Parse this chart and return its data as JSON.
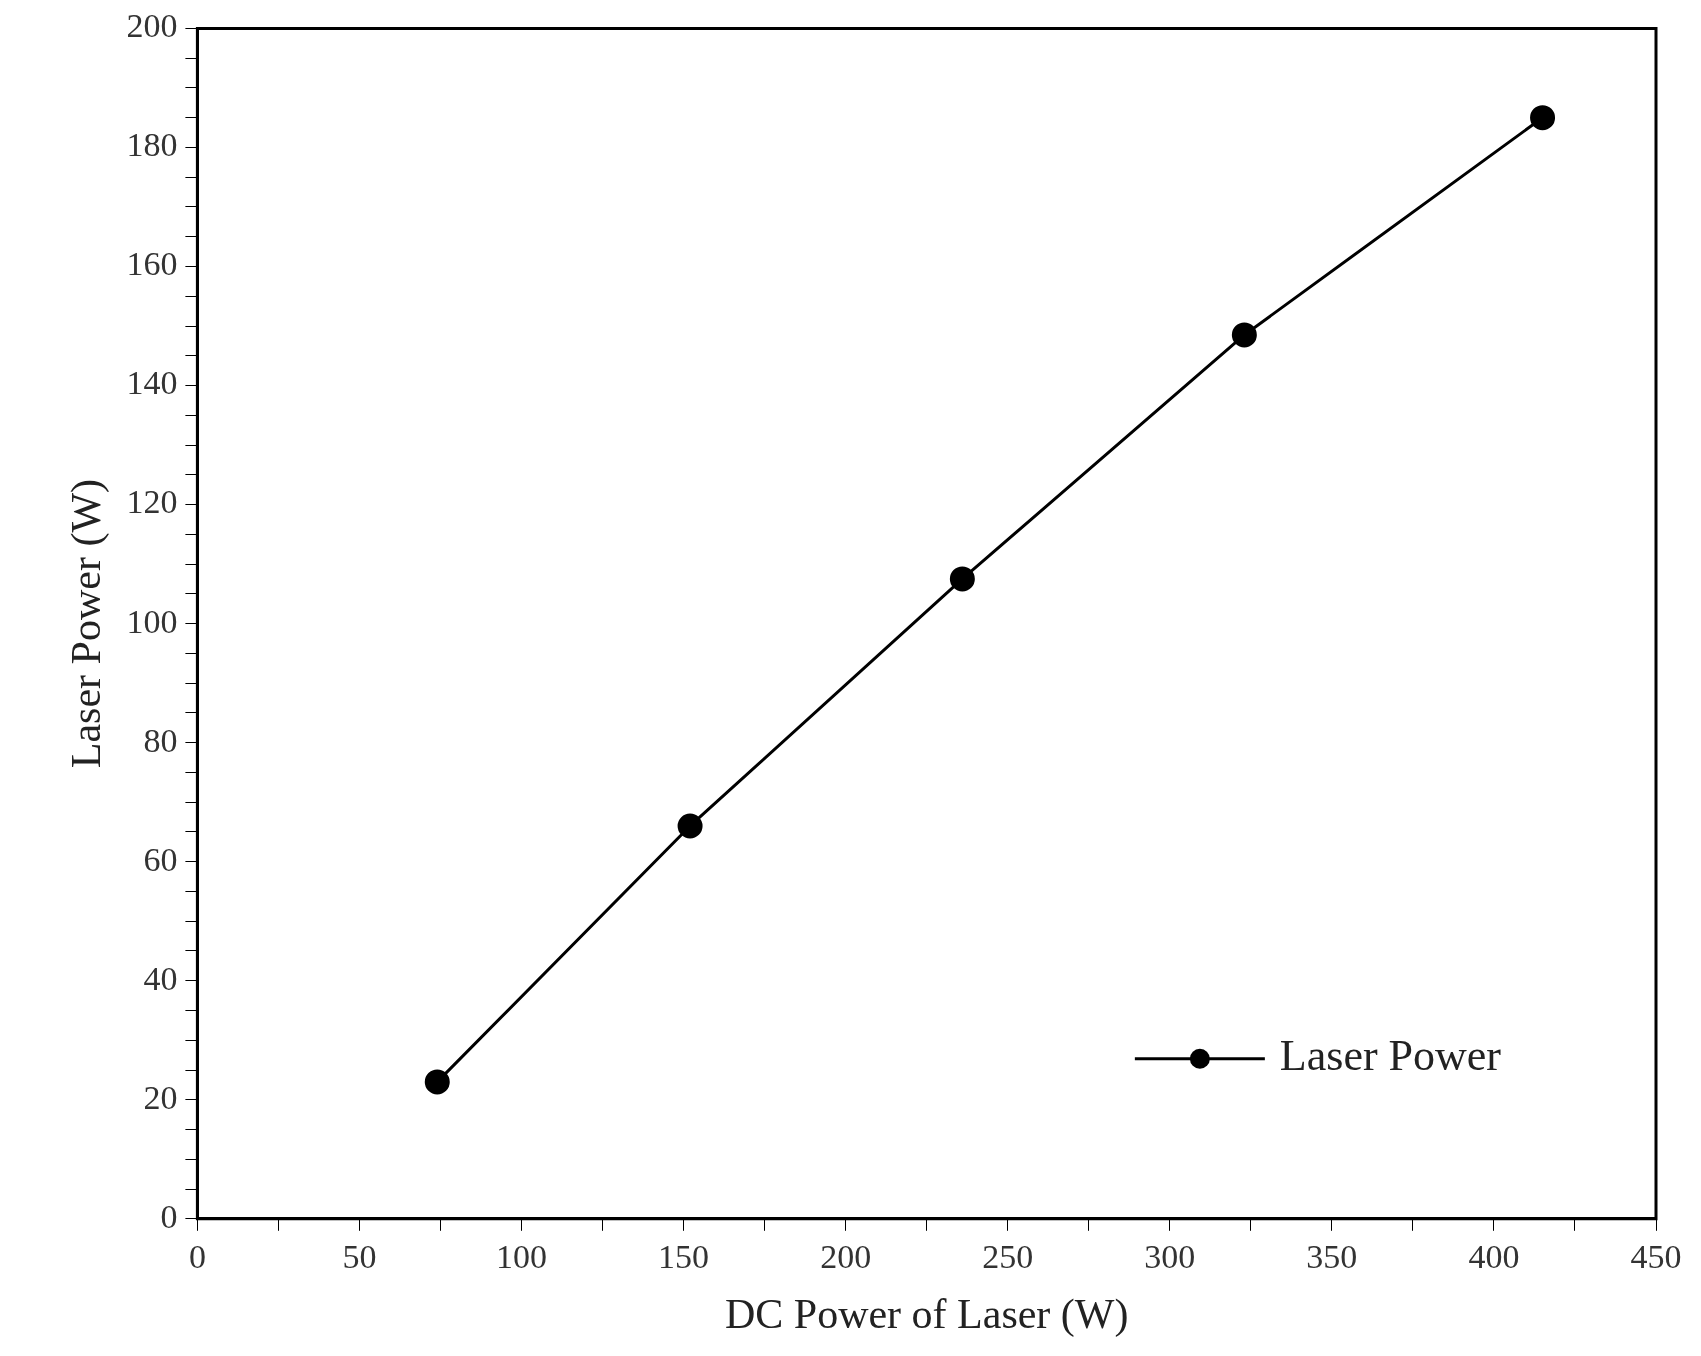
{
  "chart_data": {
    "type": "line",
    "xlabel": "DC Power of Laser (W)",
    "ylabel": "Laser Power (W)",
    "x": [
      74,
      152,
      236,
      323,
      415
    ],
    "series": [
      {
        "name": "Laser Power",
        "color": "#000000",
        "values": [
          23,
          66,
          107.5,
          148.5,
          185
        ]
      }
    ],
    "xlim": [
      0,
      450
    ],
    "ylim": [
      0,
      200
    ],
    "xticks": [
      0,
      {
        "value": 25,
        "label": null
      },
      50,
      {
        "value": 75,
        "label": null
      },
      100,
      {
        "value": 125,
        "label": null
      },
      150,
      {
        "value": 175,
        "label": null
      },
      200,
      {
        "value": 225,
        "label": null
      },
      250,
      {
        "value": 275,
        "label": null
      },
      300,
      {
        "value": 325,
        "label": null
      },
      350,
      {
        "value": 375,
        "label": null
      },
      400,
      {
        "value": 425,
        "label": null
      },
      450
    ],
    "yticks": [
      0,
      {
        "value": 5,
        "label": null
      },
      {
        "value": 10,
        "label": null
      },
      {
        "value": 15,
        "label": null
      },
      20,
      {
        "value": 25,
        "label": null
      },
      {
        "value": 30,
        "label": null
      },
      {
        "value": 35,
        "label": null
      },
      40,
      {
        "value": 45,
        "label": null
      },
      {
        "value": 50,
        "label": null
      },
      {
        "value": 55,
        "label": null
      },
      60,
      {
        "value": 65,
        "label": null
      },
      {
        "value": 70,
        "label": null
      },
      {
        "value": 75,
        "label": null
      },
      80,
      {
        "value": 85,
        "label": null
      },
      {
        "value": 90,
        "label": null
      },
      {
        "value": 95,
        "label": null
      },
      100,
      {
        "value": 105,
        "label": null
      },
      {
        "value": 110,
        "label": null
      },
      {
        "value": 115,
        "label": null
      },
      120,
      {
        "value": 125,
        "label": null
      },
      {
        "value": 130,
        "label": null
      },
      {
        "value": 135,
        "label": null
      },
      140,
      {
        "value": 145,
        "label": null
      },
      {
        "value": 150,
        "label": null
      },
      {
        "value": 155,
        "label": null
      },
      160,
      {
        "value": 165,
        "label": null
      },
      {
        "value": 170,
        "label": null
      },
      {
        "value": 175,
        "label": null
      },
      180,
      {
        "value": 185,
        "label": null
      },
      {
        "value": 190,
        "label": null
      },
      {
        "value": 195,
        "label": null
      },
      200
    ],
    "grid": false,
    "legend": "bottom right",
    "marker": "circle",
    "line_style": "solid"
  }
}
